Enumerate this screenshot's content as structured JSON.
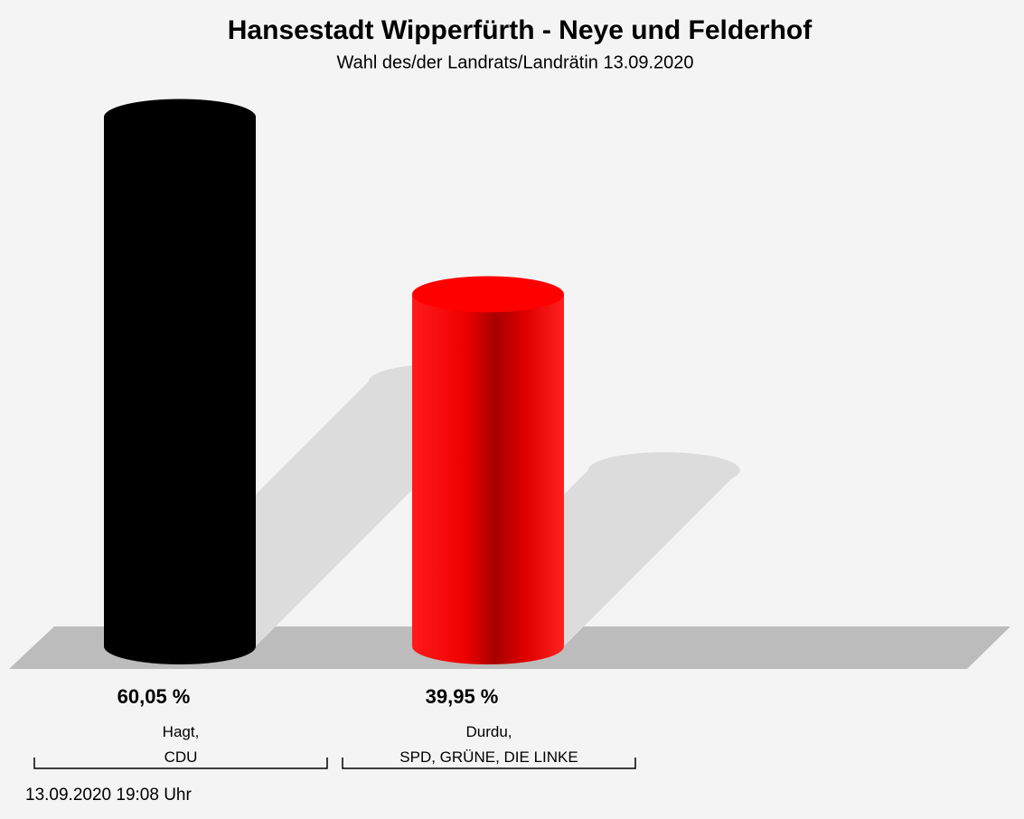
{
  "chart_data": {
    "type": "bar",
    "title": "Hansestadt Wipperfürth - Neye und Felderhof",
    "subtitle": "Wahl des/der Landrats/Landrätin 13.09.2020",
    "categories": [
      "Hagt,\nCDU",
      "Durdu,\nSPD, GRÜNE, DIE LINKE"
    ],
    "values": [
      60.05,
      39.95
    ],
    "value_labels": [
      "60,05 %",
      "39,95 %"
    ],
    "colors": [
      "#000000",
      "#ff0000"
    ],
    "footer": "13.09.2020 19:08 Uhr"
  }
}
